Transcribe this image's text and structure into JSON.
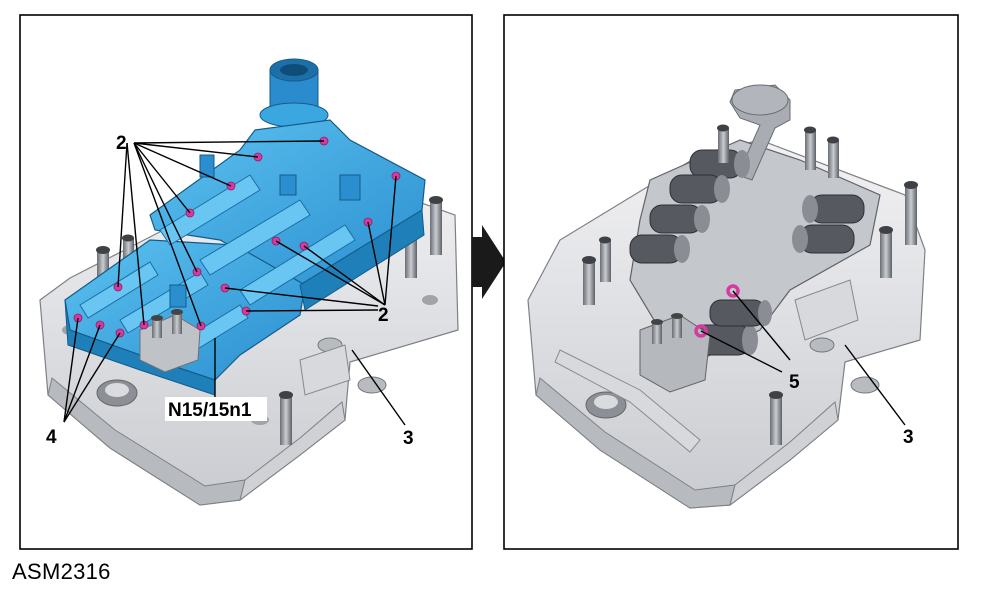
{
  "caption": "ASM2316",
  "left_panel": {
    "labels": {
      "upper_2": "2",
      "right_2": "2",
      "label_4": "4",
      "label_n15": "N15/15n1",
      "label_3": "3"
    }
  },
  "right_panel": {
    "labels": {
      "label_5": "5",
      "label_3": "3"
    }
  },
  "colors": {
    "module_blue": "#3aa7e0",
    "module_blue_dark": "#1f7fb8",
    "seal_magenta": "#d63aa0",
    "housing_grey": "#e8e8ea",
    "housing_dark": "#a9acb2",
    "arrow": "#1a1a1a"
  }
}
